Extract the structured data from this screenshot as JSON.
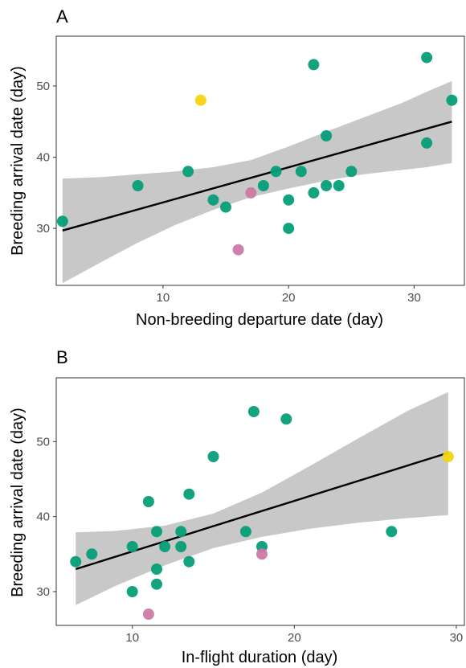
{
  "colors": {
    "green": "#079e78",
    "yellow": "#f5d40c",
    "pink": "#cc79a7",
    "band": "#c8c8c8",
    "line": "#000000"
  },
  "chart_data": [
    {
      "type": "scatter",
      "panel": "A",
      "xlabel": "Non-breeding departure date (day)",
      "ylabel": "Breeding arrival date (day)",
      "xlim": [
        1.5,
        34
      ],
      "ylim": [
        22,
        57
      ],
      "xticks": [
        10,
        20,
        30
      ],
      "yticks": [
        30,
        40,
        50
      ],
      "grid": false,
      "fit": {
        "x0": 2,
        "y0": 29.7,
        "x1": 33,
        "y1": 45.0
      },
      "band": {
        "x": [
          2,
          5,
          8,
          11,
          14,
          17,
          20,
          23,
          26,
          29,
          31,
          33
        ],
        "upper": [
          37.0,
          37.2,
          37.6,
          38.0,
          38.6,
          39.6,
          41.5,
          43.6,
          45.6,
          47.6,
          49.2,
          50.7
        ],
        "lower": [
          22.3,
          25.2,
          28.0,
          30.5,
          32.6,
          34.4,
          35.6,
          36.7,
          37.6,
          38.2,
          38.6,
          39.2
        ]
      },
      "points": [
        {
          "x": 2,
          "y": 31,
          "c": "green"
        },
        {
          "x": 8,
          "y": 36,
          "c": "green"
        },
        {
          "x": 12,
          "y": 38,
          "c": "green"
        },
        {
          "x": 13,
          "y": 48,
          "c": "yellow"
        },
        {
          "x": 14,
          "y": 34,
          "c": "green"
        },
        {
          "x": 15,
          "y": 33,
          "c": "green"
        },
        {
          "x": 16,
          "y": 27,
          "c": "pink"
        },
        {
          "x": 17,
          "y": 35,
          "c": "pink"
        },
        {
          "x": 18,
          "y": 36,
          "c": "green"
        },
        {
          "x": 19,
          "y": 38,
          "c": "green"
        },
        {
          "x": 20,
          "y": 34,
          "c": "green"
        },
        {
          "x": 20,
          "y": 30,
          "c": "green"
        },
        {
          "x": 21,
          "y": 38,
          "c": "green"
        },
        {
          "x": 22,
          "y": 53,
          "c": "green"
        },
        {
          "x": 22,
          "y": 35,
          "c": "green"
        },
        {
          "x": 23,
          "y": 43,
          "c": "green"
        },
        {
          "x": 23,
          "y": 36,
          "c": "green"
        },
        {
          "x": 24,
          "y": 36,
          "c": "green"
        },
        {
          "x": 25,
          "y": 38,
          "c": "green"
        },
        {
          "x": 31,
          "y": 54,
          "c": "green"
        },
        {
          "x": 31,
          "y": 42,
          "c": "green"
        },
        {
          "x": 33,
          "y": 48,
          "c": "green"
        }
      ]
    },
    {
      "type": "scatter",
      "panel": "B",
      "xlabel": "In-flight duration (day)",
      "ylabel": "Breeding arrival date (day)",
      "xlim": [
        5.3,
        30.5
      ],
      "ylim": [
        25.5,
        58.5
      ],
      "xticks": [
        10,
        20,
        30
      ],
      "yticks": [
        30,
        40,
        50
      ],
      "grid": false,
      "fit": {
        "x0": 6.5,
        "y0": 33.0,
        "x1": 29.5,
        "y1": 48.5
      },
      "band": {
        "x": [
          6.5,
          9,
          12,
          15,
          18,
          21,
          24,
          27,
          29.5
        ],
        "upper": [
          37.9,
          38.1,
          38.8,
          40.4,
          43.2,
          46.8,
          50.5,
          54.1,
          56.6
        ],
        "lower": [
          28.2,
          30.8,
          33.5,
          35.8,
          37.3,
          38.4,
          39.2,
          39.8,
          40.2
        ]
      },
      "points": [
        {
          "x": 6.5,
          "y": 34,
          "c": "green"
        },
        {
          "x": 7.5,
          "y": 35,
          "c": "green"
        },
        {
          "x": 10,
          "y": 36,
          "c": "green"
        },
        {
          "x": 10,
          "y": 30,
          "c": "green"
        },
        {
          "x": 11,
          "y": 42,
          "c": "green"
        },
        {
          "x": 11,
          "y": 27,
          "c": "pink"
        },
        {
          "x": 11.5,
          "y": 38,
          "c": "green"
        },
        {
          "x": 11.5,
          "y": 33,
          "c": "green"
        },
        {
          "x": 11.5,
          "y": 31,
          "c": "green"
        },
        {
          "x": 12,
          "y": 36,
          "c": "green"
        },
        {
          "x": 13,
          "y": 38,
          "c": "green"
        },
        {
          "x": 13,
          "y": 36,
          "c": "green"
        },
        {
          "x": 13.5,
          "y": 43,
          "c": "green"
        },
        {
          "x": 13.5,
          "y": 34,
          "c": "green"
        },
        {
          "x": 15,
          "y": 48,
          "c": "green"
        },
        {
          "x": 17,
          "y": 38,
          "c": "green"
        },
        {
          "x": 17.5,
          "y": 54,
          "c": "green"
        },
        {
          "x": 18,
          "y": 36,
          "c": "green"
        },
        {
          "x": 18,
          "y": 35,
          "c": "pink"
        },
        {
          "x": 19.5,
          "y": 53,
          "c": "green"
        },
        {
          "x": 26,
          "y": 38,
          "c": "green"
        },
        {
          "x": 29.5,
          "y": 48,
          "c": "yellow"
        }
      ]
    }
  ]
}
